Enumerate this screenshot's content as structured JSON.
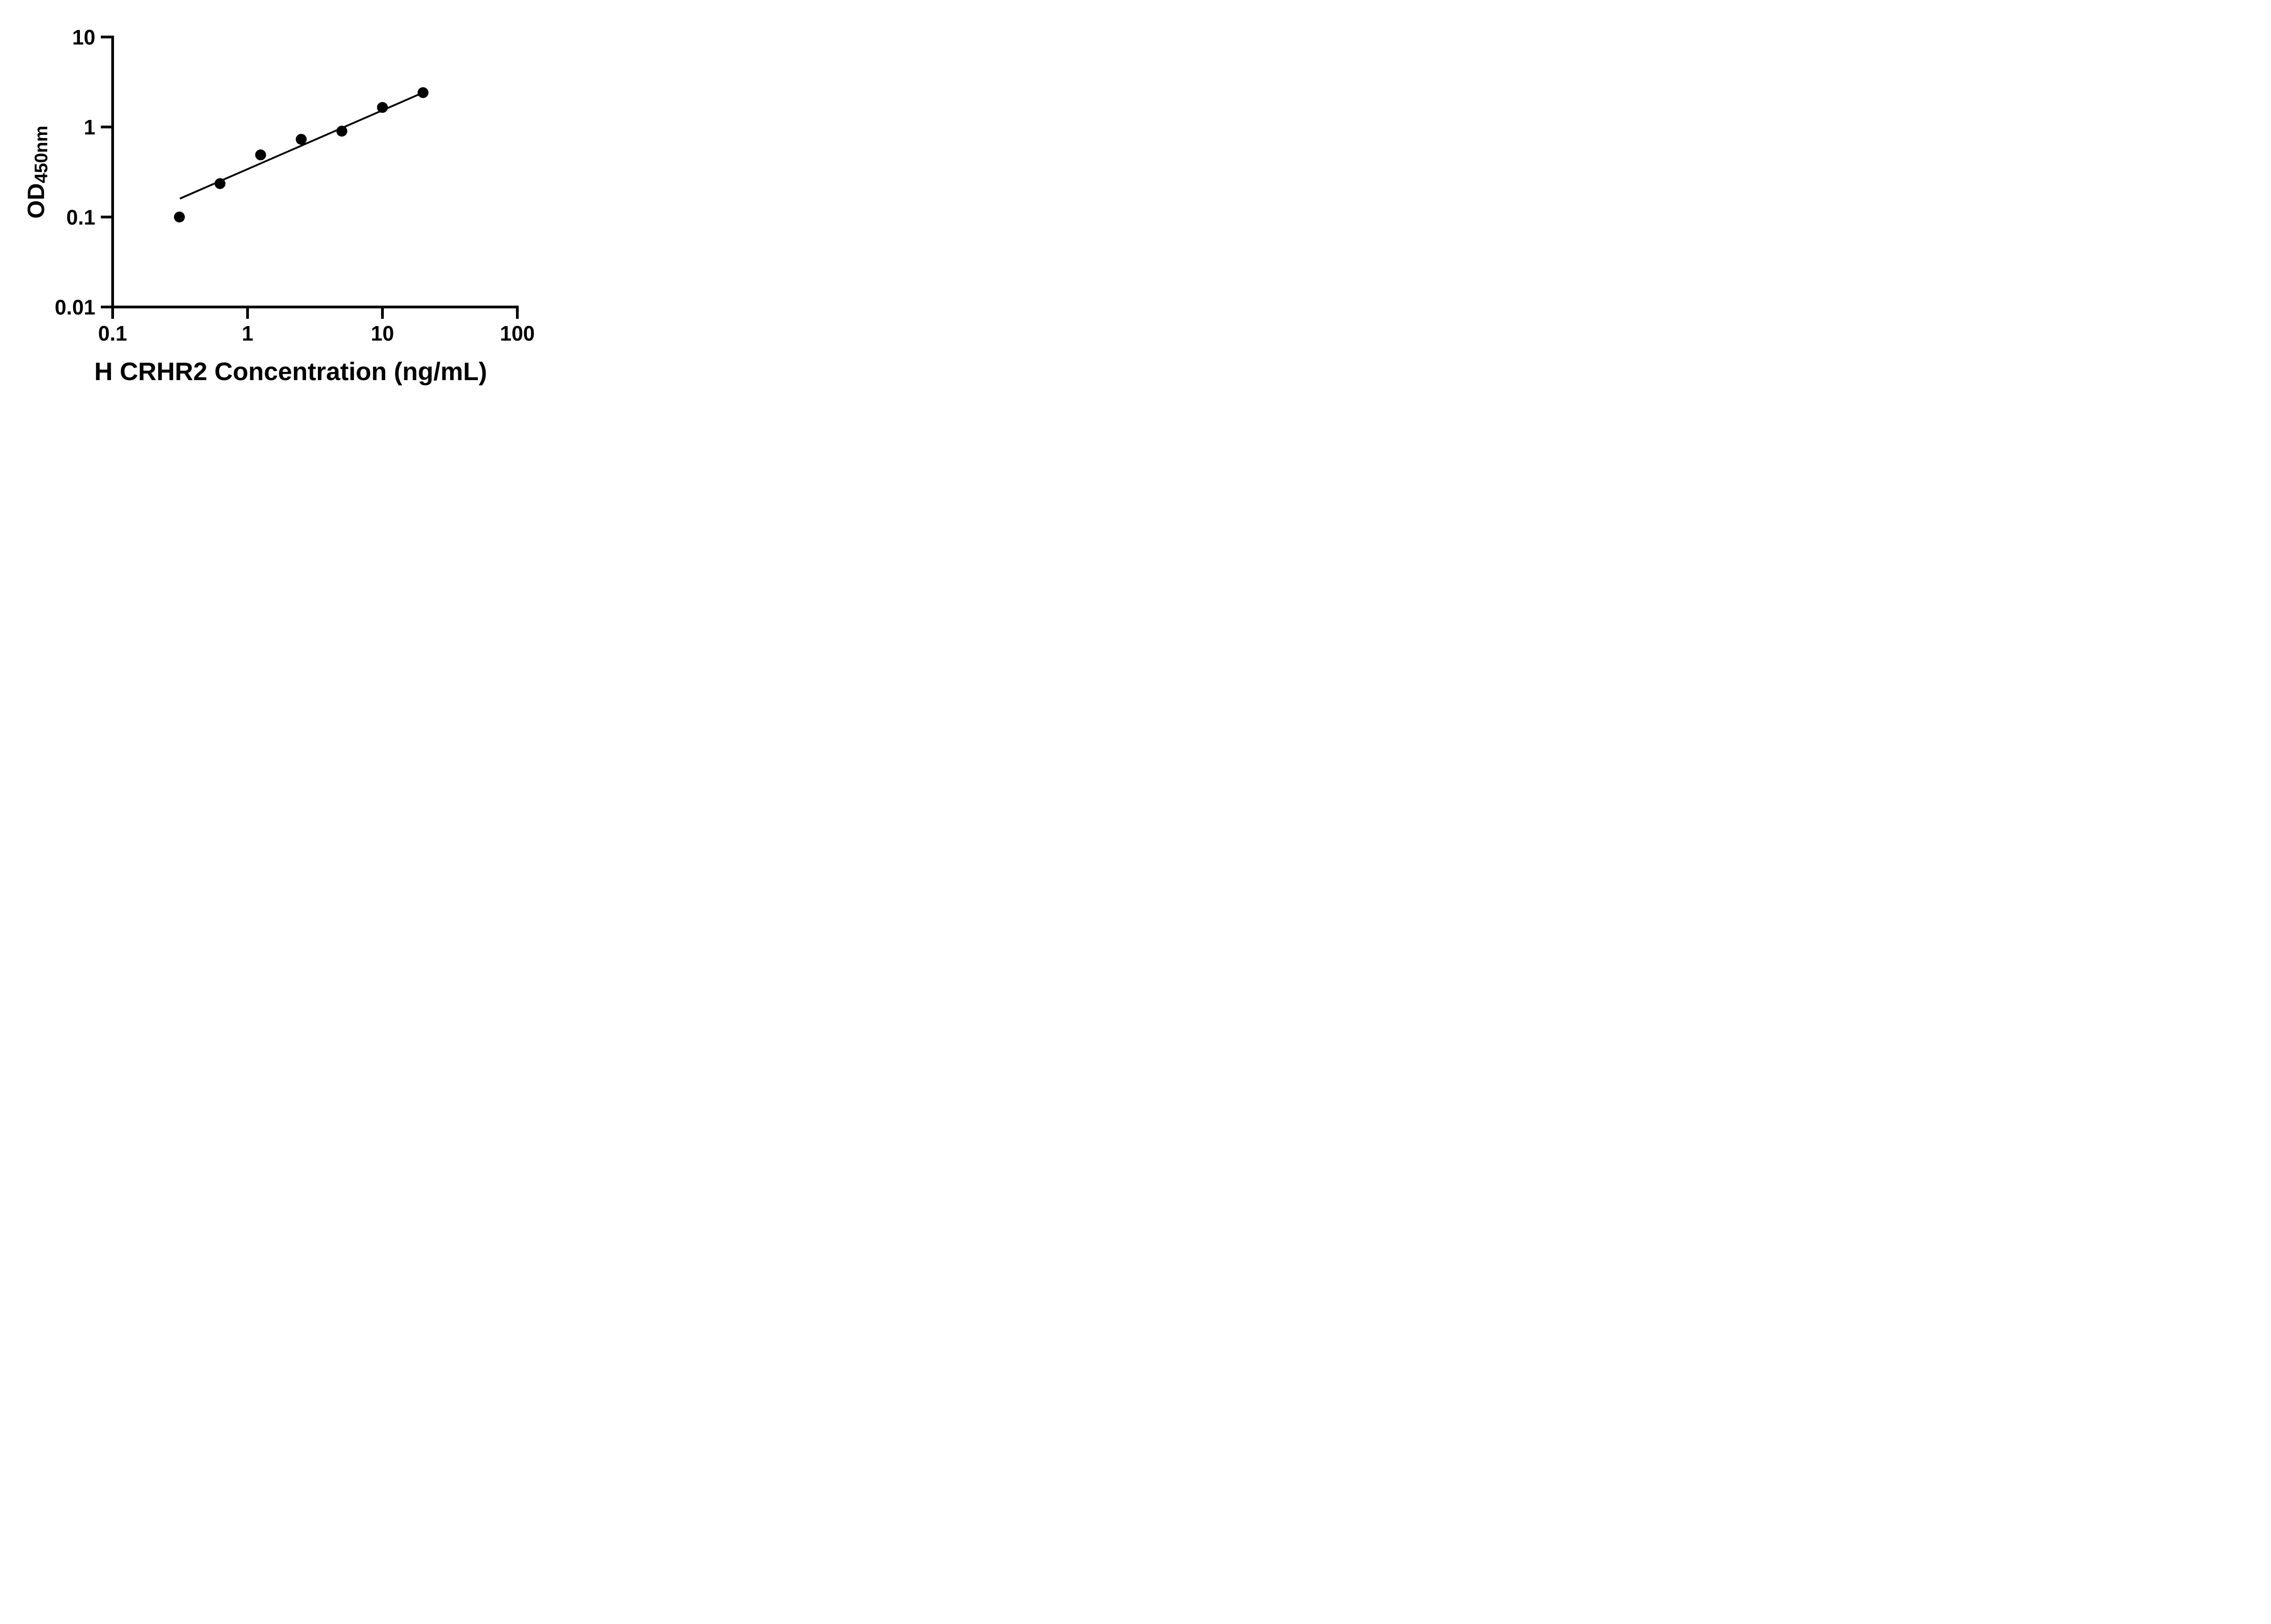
{
  "figure": {
    "background_color": "#ffffff",
    "foreground_color": "#000000"
  },
  "chart_data": {
    "type": "scatter",
    "title": "",
    "xlabel": "H CRHR2 Concentration (ng/mL)",
    "ylabel": "OD",
    "ylabel_subscript": "450nm",
    "x_scale": "log",
    "y_scale": "log",
    "xlim": [
      0.1,
      100
    ],
    "ylim": [
      0.01,
      10
    ],
    "x_ticks": [
      0.1,
      1,
      10,
      100
    ],
    "x_tick_labels": [
      "0.1",
      "1",
      "10",
      "100"
    ],
    "y_ticks": [
      0.01,
      0.1,
      1,
      10
    ],
    "y_tick_labels": [
      "0.01",
      "0.1",
      "1",
      "10"
    ],
    "grid": false,
    "legend": "none",
    "series": [
      {
        "name": "standard-curve-points",
        "marker": "filled-circle",
        "color": "#000000",
        "points": [
          {
            "x": 0.3125,
            "y": 0.1
          },
          {
            "x": 0.625,
            "y": 0.235
          },
          {
            "x": 1.25,
            "y": 0.49
          },
          {
            "x": 2.5,
            "y": 0.73
          },
          {
            "x": 5,
            "y": 0.9
          },
          {
            "x": 10,
            "y": 1.65
          },
          {
            "x": 20,
            "y": 2.41
          }
        ]
      }
    ],
    "trend_line": {
      "name": "fit-line",
      "color": "#000000",
      "x1": 0.315,
      "y1": 0.16,
      "x2": 20,
      "y2": 2.41
    }
  }
}
